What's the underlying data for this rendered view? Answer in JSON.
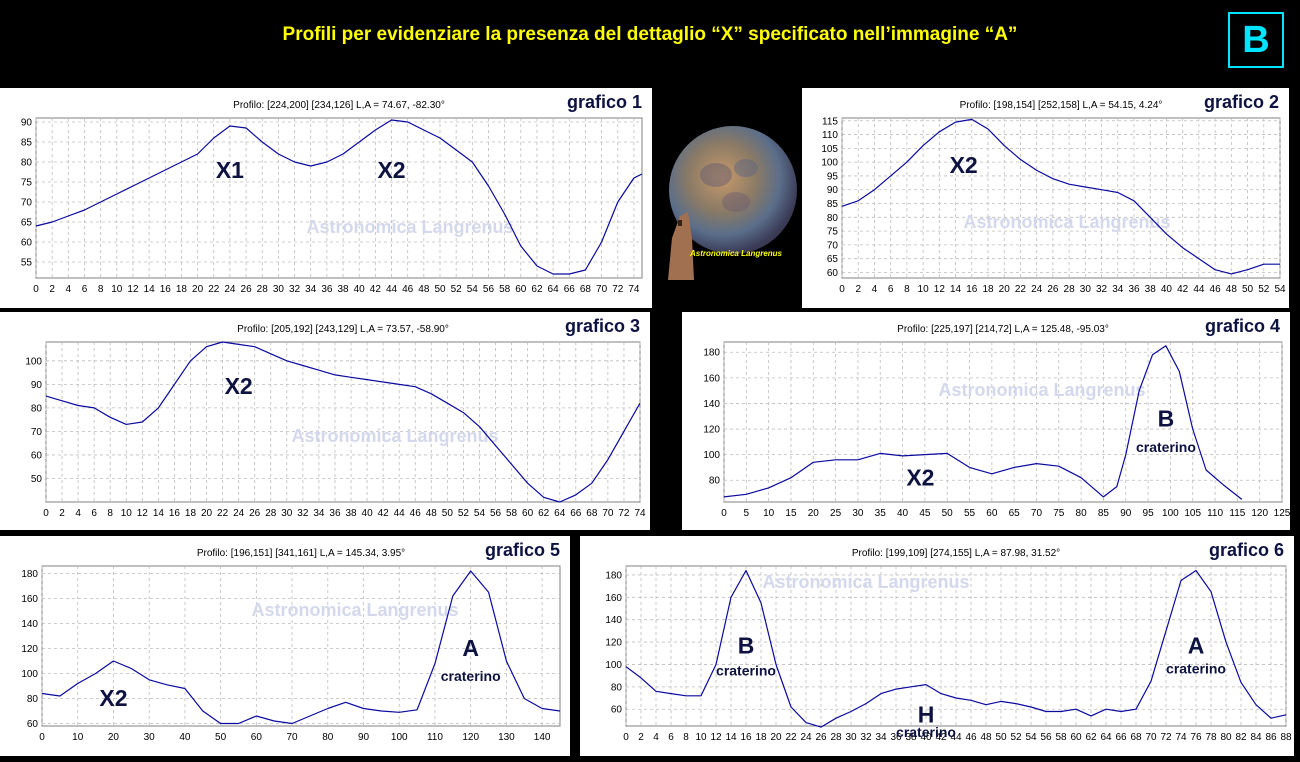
{
  "header": {
    "title": "Profili per evidenziare la presenza del dettaglio “X” specificato nell’immagine “A”",
    "badge": "B"
  },
  "watermark": "Astronomica Langrenus",
  "moon": {
    "label": "Astronomica Langrenus"
  },
  "colors": {
    "line": "#0a0aa0",
    "grid": "#bcbcbc",
    "title": "#ffff00",
    "badge": "#00e5ff",
    "label": "#0d1240"
  },
  "chart_data": [
    {
      "type": "line",
      "panel_title": "grafico 1",
      "profile_info": "Profilo: [224,200] [234,126]  L,A =  74.67, -82.30°",
      "xlim": [
        0,
        75
      ],
      "ylim": [
        51,
        91
      ],
      "xticks": [
        "0",
        "2",
        "4",
        "6",
        "8",
        "10",
        "12",
        "14",
        "16",
        "18",
        "20",
        "22",
        "24",
        "26",
        "28",
        "30",
        "32",
        "34",
        "36",
        "38",
        "40",
        "42",
        "44",
        "46",
        "48",
        "50",
        "52",
        "54",
        "56",
        "58",
        "60",
        "62",
        "64",
        "66",
        "68",
        "70",
        "72",
        "74"
      ],
      "yticks": [
        "55",
        "60",
        "65",
        "70",
        "75",
        "80",
        "85",
        "90"
      ],
      "x": [
        0,
        2,
        4,
        6,
        8,
        10,
        12,
        14,
        16,
        18,
        20,
        22,
        24,
        26,
        28,
        30,
        32,
        34,
        36,
        38,
        40,
        42,
        44,
        46,
        48,
        50,
        52,
        54,
        56,
        58,
        60,
        62,
        64,
        66,
        68,
        70,
        72,
        74,
        75
      ],
      "values": [
        64,
        65,
        66.5,
        68,
        70,
        72,
        74,
        76,
        78,
        80,
        82,
        86,
        89,
        88.5,
        85,
        82,
        80,
        79,
        80,
        82,
        85,
        88,
        90.5,
        90,
        88,
        86,
        83,
        80,
        74,
        67,
        59,
        54,
        52,
        52,
        53,
        60,
        70,
        76,
        77
      ],
      "annotations": [
        {
          "text": "X1",
          "x": 24,
          "y": 76
        },
        {
          "text": "X2",
          "x": 44,
          "y": 76
        }
      ]
    },
    {
      "type": "line",
      "panel_title": "grafico 2",
      "profile_info": "Profilo: [198,154] [252,158]  L,A =  54.15, 4.24°",
      "xlim": [
        0,
        54
      ],
      "ylim": [
        58,
        116
      ],
      "xticks": [
        "0",
        "2",
        "4",
        "6",
        "8",
        "10",
        "12",
        "14",
        "16",
        "18",
        "20",
        "22",
        "24",
        "26",
        "28",
        "30",
        "32",
        "34",
        "36",
        "38",
        "40",
        "42",
        "44",
        "46",
        "48",
        "50",
        "52",
        "54"
      ],
      "yticks": [
        "60",
        "65",
        "70",
        "75",
        "80",
        "85",
        "90",
        "95",
        "100",
        "105",
        "110",
        "115"
      ],
      "x": [
        0,
        2,
        4,
        6,
        8,
        10,
        12,
        14,
        16,
        18,
        20,
        22,
        24,
        26,
        28,
        30,
        32,
        34,
        36,
        38,
        40,
        42,
        44,
        46,
        48,
        50,
        52,
        54
      ],
      "values": [
        84,
        86,
        90,
        95,
        100,
        106,
        111,
        114.5,
        115.5,
        112,
        106,
        101,
        97,
        94,
        92,
        91,
        90,
        89,
        86,
        80,
        74,
        69,
        65,
        61,
        59.5,
        61,
        63,
        63
      ],
      "annotations": [
        {
          "text": "X2",
          "x": 15,
          "y": 96
        }
      ]
    },
    {
      "type": "line",
      "panel_title": "grafico 3",
      "profile_info": "Profilo: [205,192] [243,129]  L,A =  73.57, -58.90°",
      "xlim": [
        0,
        74
      ],
      "ylim": [
        40,
        108
      ],
      "xticks": [
        "0",
        "2",
        "4",
        "6",
        "8",
        "10",
        "12",
        "14",
        "16",
        "18",
        "20",
        "22",
        "24",
        "26",
        "28",
        "30",
        "32",
        "34",
        "36",
        "38",
        "40",
        "42",
        "44",
        "46",
        "48",
        "50",
        "52",
        "54",
        "56",
        "58",
        "60",
        "62",
        "64",
        "66",
        "68",
        "70",
        "72",
        "74"
      ],
      "yticks": [
        "50",
        "60",
        "70",
        "80",
        "90",
        "100"
      ],
      "x": [
        0,
        2,
        4,
        6,
        8,
        10,
        12,
        14,
        16,
        18,
        20,
        22,
        24,
        26,
        28,
        30,
        32,
        34,
        36,
        38,
        40,
        42,
        44,
        46,
        48,
        50,
        52,
        54,
        56,
        58,
        60,
        62,
        64,
        66,
        68,
        70,
        72,
        74
      ],
      "values": [
        85,
        83,
        81,
        80,
        76,
        73,
        74,
        80,
        90,
        100,
        106,
        108,
        107,
        106,
        103,
        100,
        98,
        96,
        94,
        93,
        92,
        91,
        90,
        89,
        86,
        82,
        78,
        72,
        64,
        56,
        48,
        42,
        40,
        43,
        48,
        58,
        70,
        82
      ],
      "annotations": [
        {
          "text": "X2",
          "x": 24,
          "y": 86
        }
      ]
    },
    {
      "type": "line",
      "panel_title": "grafico 4",
      "profile_info": "Profilo: [225,197] [214,72]  L,A = 125.48, -95.03°",
      "xlim": [
        0,
        125
      ],
      "ylim": [
        63,
        188
      ],
      "xticks": [
        "0",
        "5",
        "10",
        "15",
        "20",
        "25",
        "30",
        "35",
        "40",
        "45",
        "50",
        "55",
        "60",
        "65",
        "70",
        "75",
        "80",
        "85",
        "90",
        "95",
        "100",
        "105",
        "110",
        "115",
        "120",
        "125"
      ],
      "yticks": [
        "80",
        "100",
        "120",
        "140",
        "160",
        "180"
      ],
      "x": [
        0,
        5,
        10,
        15,
        20,
        25,
        30,
        35,
        40,
        45,
        50,
        55,
        60,
        65,
        70,
        75,
        80,
        85,
        88,
        90,
        93,
        96,
        99,
        102,
        105,
        108,
        112,
        116
      ],
      "values": [
        67,
        69,
        74,
        82,
        94,
        96,
        96,
        101,
        99,
        100,
        101,
        90,
        85,
        90,
        93,
        91,
        82,
        67,
        75,
        100,
        150,
        178,
        185,
        165,
        120,
        88,
        76,
        65
      ],
      "annotations": [
        {
          "text": "X2",
          "x": 44,
          "y": 76
        },
        {
          "text": "B",
          "x": 99,
          "y": 122
        },
        {
          "text": "craterino",
          "x": 99,
          "y": 102,
          "small": true
        }
      ]
    },
    {
      "type": "line",
      "panel_title": "grafico 5",
      "profile_info": "Profilo: [196,151] [341,161]  L,A = 145.34, 3.95°",
      "xlim": [
        0,
        145
      ],
      "ylim": [
        58,
        186
      ],
      "xticks": [
        "0",
        "10",
        "20",
        "30",
        "40",
        "50",
        "60",
        "70",
        "80",
        "90",
        "100",
        "110",
        "120",
        "130",
        "140"
      ],
      "yticks": [
        "60",
        "80",
        "100",
        "120",
        "140",
        "160",
        "180"
      ],
      "x": [
        0,
        5,
        10,
        15,
        20,
        25,
        30,
        35,
        40,
        45,
        50,
        55,
        60,
        65,
        70,
        75,
        80,
        85,
        90,
        95,
        100,
        105,
        110,
        115,
        120,
        125,
        130,
        135,
        140,
        145
      ],
      "values": [
        84,
        82,
        92,
        100,
        110,
        104,
        95,
        91,
        88,
        70,
        60,
        60,
        66,
        62,
        60,
        66,
        72,
        77,
        72,
        70,
        69,
        71,
        108,
        162,
        182,
        165,
        110,
        80,
        72,
        70
      ],
      "annotations": [
        {
          "text": "X2",
          "x": 20,
          "y": 74
        },
        {
          "text": "A",
          "x": 120,
          "y": 114
        },
        {
          "text": "craterino",
          "x": 120,
          "y": 94,
          "small": true
        }
      ]
    },
    {
      "type": "line",
      "panel_title": "grafico 6",
      "profile_info": "Profilo: [199,109] [274,155]  L,A =  87.98, 31.52°",
      "xlim": [
        0,
        88
      ],
      "ylim": [
        45,
        188
      ],
      "xticks": [
        "0",
        "2",
        "4",
        "6",
        "8",
        "10",
        "12",
        "14",
        "16",
        "18",
        "20",
        "22",
        "24",
        "26",
        "28",
        "30",
        "32",
        "34",
        "36",
        "38",
        "40",
        "42",
        "44",
        "46",
        "48",
        "50",
        "52",
        "54",
        "56",
        "58",
        "60",
        "62",
        "64",
        "66",
        "68",
        "70",
        "72",
        "74",
        "76",
        "78",
        "80",
        "82",
        "84",
        "86",
        "88"
      ],
      "yticks": [
        "60",
        "80",
        "100",
        "120",
        "140",
        "160",
        "180"
      ],
      "x": [
        0,
        2,
        4,
        6,
        8,
        10,
        12,
        14,
        16,
        18,
        20,
        22,
        24,
        26,
        28,
        30,
        32,
        34,
        36,
        38,
        40,
        42,
        44,
        46,
        48,
        50,
        52,
        54,
        56,
        58,
        60,
        62,
        64,
        66,
        68,
        70,
        72,
        74,
        76,
        78,
        80,
        82,
        84,
        86,
        88
      ],
      "values": [
        98,
        88,
        76,
        74,
        72,
        72,
        100,
        160,
        184,
        155,
        100,
        62,
        48,
        44,
        52,
        58,
        65,
        74,
        78,
        80,
        82,
        74,
        70,
        68,
        64,
        67,
        65,
        62,
        58,
        58,
        60,
        54,
        60,
        58,
        60,
        85,
        130,
        175,
        184,
        165,
        120,
        84,
        64,
        52,
        55
      ],
      "annotations": [
        {
          "text": "B",
          "x": 16,
          "y": 110
        },
        {
          "text": "craterino",
          "x": 16,
          "y": 90,
          "small": true
        },
        {
          "text": "H",
          "x": 40,
          "y": 48
        },
        {
          "text": "craterino",
          "x": 40,
          "y": 35,
          "small": true
        },
        {
          "text": "A",
          "x": 76,
          "y": 110
        },
        {
          "text": "craterino",
          "x": 76,
          "y": 92,
          "small": true
        }
      ]
    }
  ]
}
